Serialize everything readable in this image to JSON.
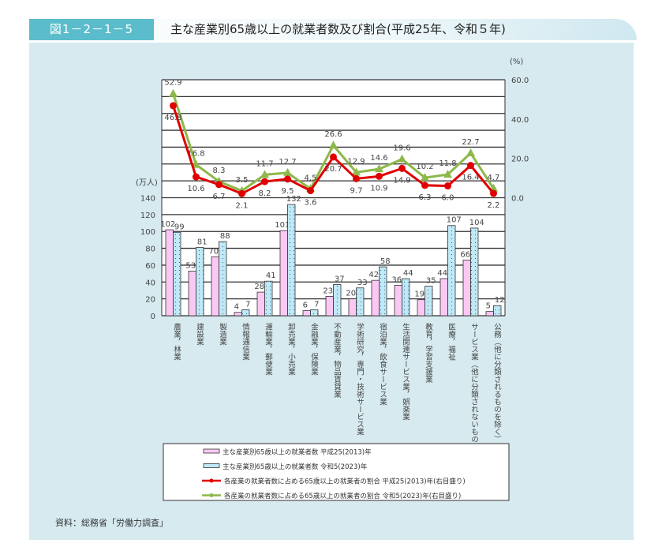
{
  "header": {
    "figure_no": "図1－2－1－5",
    "title": "主な産業別65歳以上の就業者数及び割合(平成25年、令和５年)"
  },
  "source": "資料：総務省「労働力調査」",
  "colors": {
    "bar2013": "#fbc8f4",
    "bar2023": "#bfe9f7",
    "line2013": "#e00000",
    "line2023": "#8db84a",
    "panel": "#d6eaf0",
    "accent": "#5bbccb"
  },
  "chart_data": {
    "type": "bar+line",
    "left_axis": {
      "unit": "(万人)",
      "ylim": [
        0,
        140
      ],
      "ticks": [
        "0",
        "20",
        "40",
        "60",
        "80",
        "100",
        "120",
        "140"
      ]
    },
    "right_axis": {
      "unit": "(%)",
      "ylim": [
        0,
        60
      ],
      "ticks": [
        "0.0",
        "20.0",
        "40.0",
        "60.0"
      ]
    },
    "grid": true,
    "legend_placement": "bottom",
    "categories": [
      "農業，林業",
      "建設業",
      "製造業",
      "情報通信業",
      "運輸業，郵便業",
      "卸売業，小売業",
      "金融業，保険業",
      "不動産業，物品賃貸業",
      "学術研究，専門・技術サービス業",
      "宿泊業，飲食サービス業",
      "生活関連サービス業，娯楽業",
      "教育，学習支援業",
      "医療，福祉",
      "サービス業（他に分類されないもの）",
      "公務（他に分類されるものを除く）"
    ],
    "series": [
      {
        "name": "主な産業別65歳以上の就業者数 平成25(2013)年",
        "type": "bar",
        "axis": "left",
        "values": [
          102,
          53,
          70,
          4,
          28,
          101,
          6,
          23,
          20,
          42,
          36,
          19,
          44,
          66,
          5
        ]
      },
      {
        "name": "主な産業別65歳以上の就業者数 令和5(2023)年",
        "type": "bar",
        "axis": "left",
        "values": [
          99,
          81,
          88,
          7,
          41,
          132,
          7,
          37,
          33,
          58,
          44,
          35,
          107,
          104,
          12
        ]
      },
      {
        "name": "各産業の就業者数に占める65歳以上の就業者の割合 平成25(2013)年(右目盛り)",
        "type": "line",
        "axis": "right",
        "values": [
          46.8,
          10.6,
          6.7,
          2.1,
          8.2,
          9.5,
          3.6,
          20.7,
          9.7,
          10.9,
          14.9,
          6.3,
          6.0,
          16.4,
          2.2
        ]
      },
      {
        "name": "各産業の就業者数に占める65歳以上の就業者の割合 令和5(2023)年(右目盛り)",
        "type": "line",
        "axis": "right",
        "values": [
          52.9,
          16.8,
          8.3,
          3.5,
          11.7,
          12.7,
          4.5,
          26.6,
          12.9,
          14.6,
          19.6,
          10.2,
          11.8,
          22.7,
          4.7
        ]
      }
    ]
  }
}
